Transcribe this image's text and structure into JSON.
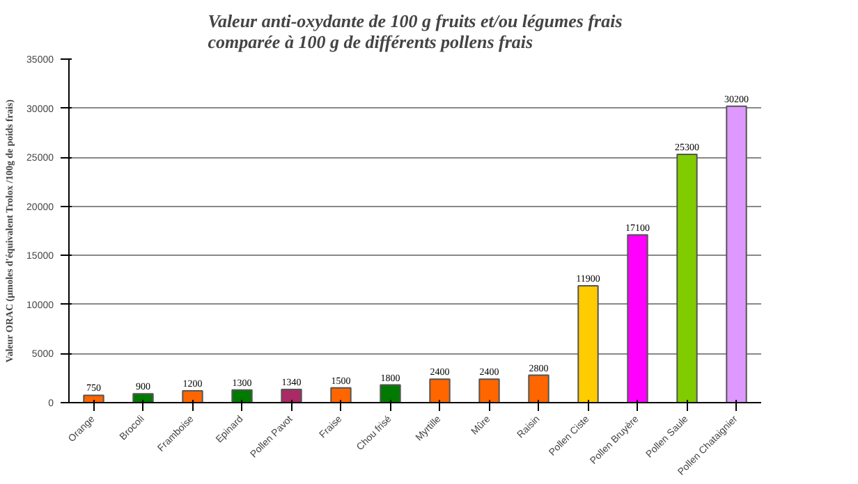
{
  "chart_data": {
    "type": "bar",
    "title": "Valeur anti-oxydante de 100 g fruits et/ou légumes frais\ncomparée à 100 g de différents pollens frais",
    "ylabel": "Valeur ORAC (µmoles d'équivalent Trolox /100g de poids frais)",
    "categories": [
      "Orange",
      "Brocoli",
      "Framboise",
      "Epinard",
      "Pollen Pavot",
      "Fraise",
      "Chou frisé",
      "Myrtille",
      "Mûre",
      "Raisin",
      "Pollen Ciste",
      "Pollen Bruyère",
      "Pollen Saule",
      "Pollen Chataignier"
    ],
    "values": [
      750,
      900,
      1200,
      1300,
      1340,
      1500,
      1800,
      2400,
      2400,
      2800,
      11900,
      17100,
      25300,
      30200
    ],
    "colors": [
      "#ff6600",
      "#007a00",
      "#ff6600",
      "#007a00",
      "#aa2a66",
      "#ff6600",
      "#007a00",
      "#ff6600",
      "#ff6600",
      "#ff6600",
      "#ffcc00",
      "#ff00ff",
      "#80cc00",
      "#dd99ff"
    ],
    "ylim": [
      0,
      35000
    ],
    "yticks": [
      0,
      5000,
      10000,
      15000,
      20000,
      25000,
      30000,
      35000
    ],
    "grid": "y",
    "data_labels": true
  }
}
